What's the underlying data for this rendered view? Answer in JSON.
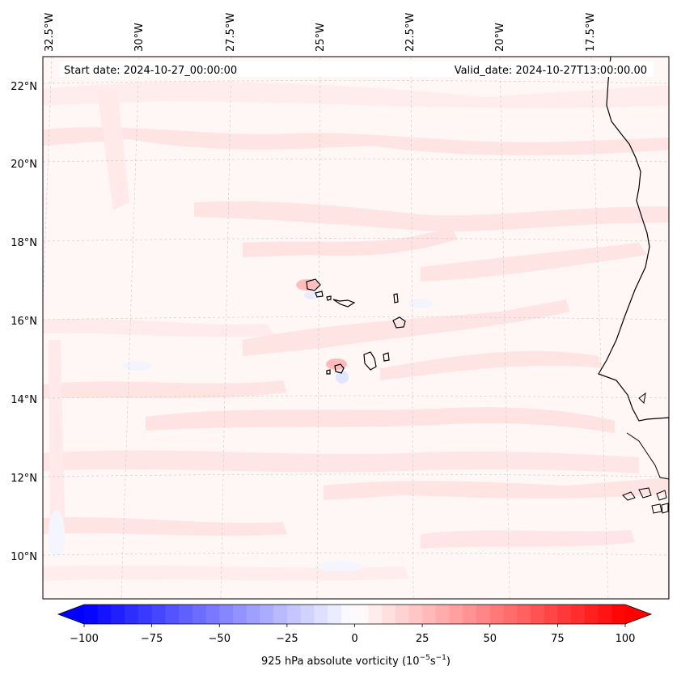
{
  "map": {
    "start_date": "Start date: 2024-10-27_00:00:00",
    "valid_date": "Valid_date: 2024-10-27T13:00:00.00",
    "longitude_labels": [
      "32.5°W",
      "30°W",
      "27.5°W",
      "25°W",
      "22.5°W",
      "20°W",
      "17.5°W"
    ],
    "latitude_labels": [
      "22°N",
      "20°N",
      "18°N",
      "16°N",
      "14°N",
      "12°N",
      "10°N"
    ],
    "field": "absolute vorticity",
    "level": "925 hPa",
    "features": [
      "Cape Verde islands",
      "West African coastline (Senegal, Gambia, Guinea-Bissau)"
    ]
  },
  "colorbar": {
    "label": "925 hPa absolute vorticity (10",
    "label_exp1": "−5",
    "label_mid": "s",
    "label_exp2": "−1",
    "label_end": ")",
    "tick_labels": [
      "−100",
      "−75",
      "−50",
      "−25",
      "0",
      "25",
      "50",
      "75",
      "100"
    ],
    "ticks": [
      -100,
      -75,
      -50,
      -25,
      0,
      25,
      50,
      75,
      100
    ],
    "range": [
      -100,
      100
    ],
    "colormap": "bwr",
    "extend": "both",
    "min_color": "#0000ff",
    "mid_color": "#ffffff",
    "max_color": "#ff0000"
  }
}
